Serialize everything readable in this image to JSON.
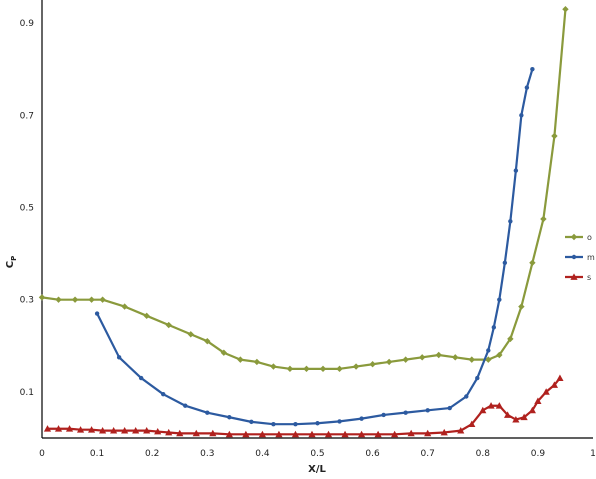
{
  "chart_data": {
    "type": "line",
    "xlabel": "X/L",
    "ylabel": "Cp",
    "ylabel_main": "C",
    "ylabel_sub": "P",
    "xlim": [
      0,
      1
    ],
    "ylim": [
      0,
      0.95
    ],
    "x_ticks": [
      "0",
      "0.1",
      "0.2",
      "0.3",
      "0.4",
      "0.5",
      "0.6",
      "0.7",
      "0.8",
      "0.9",
      "1"
    ],
    "y_ticks": [
      "0.1",
      "0.3",
      "0.5",
      "0.7",
      "0.9"
    ],
    "grid": false,
    "legend_position": "right",
    "series": [
      {
        "name": "o",
        "color": "#8a9a3c",
        "marker": "diamond",
        "x": [
          0.0,
          0.03,
          0.06,
          0.09,
          0.11,
          0.15,
          0.19,
          0.23,
          0.27,
          0.3,
          0.33,
          0.36,
          0.39,
          0.42,
          0.45,
          0.48,
          0.51,
          0.54,
          0.57,
          0.6,
          0.63,
          0.66,
          0.69,
          0.72,
          0.75,
          0.78,
          0.81,
          0.83,
          0.85,
          0.87,
          0.89,
          0.91,
          0.93,
          0.95
        ],
        "y": [
          0.305,
          0.3,
          0.3,
          0.3,
          0.3,
          0.285,
          0.265,
          0.245,
          0.225,
          0.21,
          0.185,
          0.17,
          0.165,
          0.155,
          0.15,
          0.15,
          0.15,
          0.15,
          0.155,
          0.16,
          0.165,
          0.17,
          0.175,
          0.18,
          0.175,
          0.17,
          0.17,
          0.18,
          0.215,
          0.285,
          0.38,
          0.475,
          0.655,
          0.93
        ]
      },
      {
        "name": "m",
        "color": "#2c5aa0",
        "marker": "dot",
        "x": [
          0.1,
          0.14,
          0.18,
          0.22,
          0.26,
          0.3,
          0.34,
          0.38,
          0.42,
          0.46,
          0.5,
          0.54,
          0.58,
          0.62,
          0.66,
          0.7,
          0.74,
          0.77,
          0.79,
          0.81,
          0.82,
          0.83,
          0.84,
          0.85,
          0.86,
          0.87,
          0.88,
          0.89
        ],
        "y": [
          0.27,
          0.175,
          0.13,
          0.095,
          0.07,
          0.055,
          0.045,
          0.035,
          0.03,
          0.03,
          0.032,
          0.036,
          0.042,
          0.05,
          0.055,
          0.06,
          0.065,
          0.09,
          0.13,
          0.19,
          0.24,
          0.3,
          0.38,
          0.47,
          0.58,
          0.7,
          0.76,
          0.8
        ]
      },
      {
        "name": "s",
        "color": "#b0211e",
        "marker": "triangle",
        "x": [
          0.01,
          0.03,
          0.05,
          0.07,
          0.09,
          0.11,
          0.13,
          0.15,
          0.17,
          0.19,
          0.21,
          0.23,
          0.25,
          0.28,
          0.31,
          0.34,
          0.37,
          0.4,
          0.43,
          0.46,
          0.49,
          0.52,
          0.55,
          0.58,
          0.61,
          0.64,
          0.67,
          0.7,
          0.73,
          0.76,
          0.78,
          0.8,
          0.815,
          0.83,
          0.845,
          0.86,
          0.875,
          0.89,
          0.9,
          0.915,
          0.93,
          0.94
        ],
        "y": [
          0.02,
          0.02,
          0.02,
          0.018,
          0.018,
          0.016,
          0.016,
          0.016,
          0.016,
          0.016,
          0.014,
          0.012,
          0.01,
          0.01,
          0.01,
          0.008,
          0.008,
          0.008,
          0.008,
          0.008,
          0.008,
          0.008,
          0.008,
          0.008,
          0.008,
          0.008,
          0.01,
          0.01,
          0.012,
          0.016,
          0.03,
          0.06,
          0.07,
          0.07,
          0.05,
          0.04,
          0.045,
          0.06,
          0.08,
          0.1,
          0.115,
          0.13
        ]
      }
    ]
  }
}
